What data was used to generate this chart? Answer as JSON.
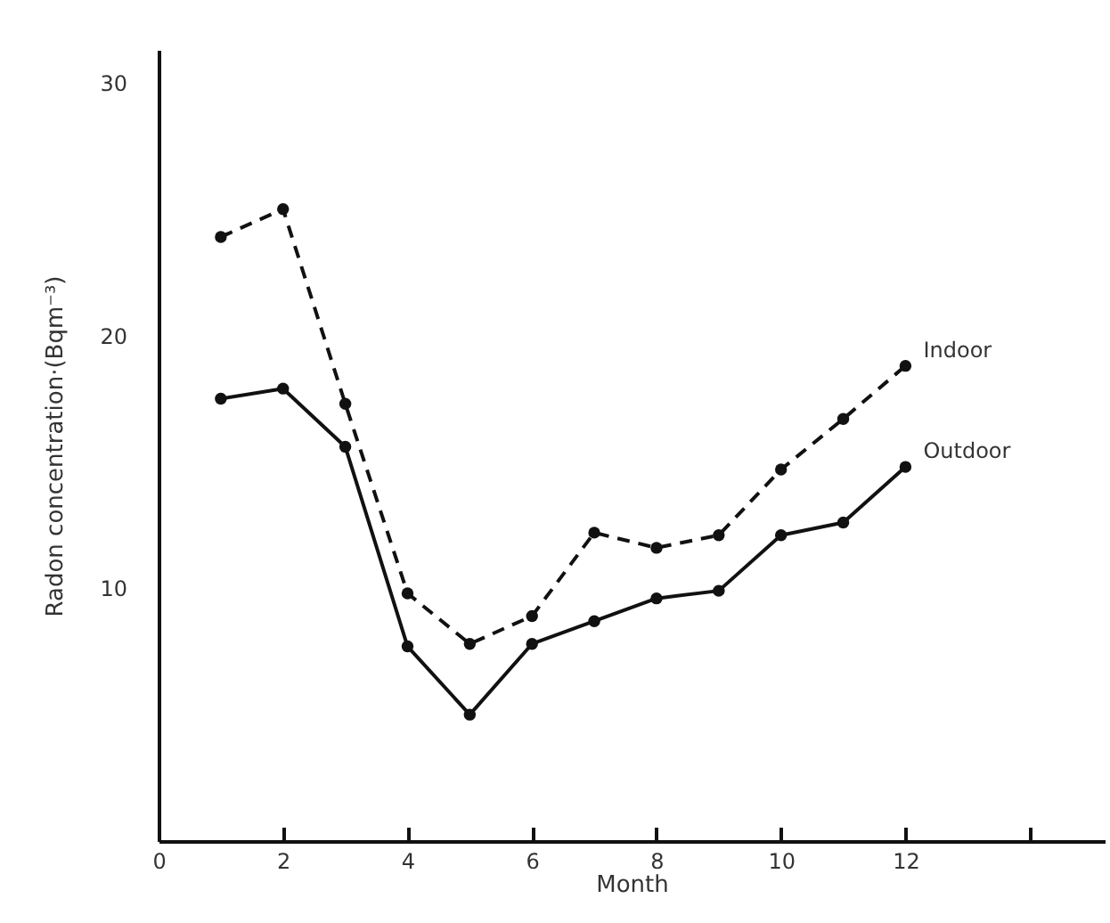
{
  "chart_data": {
    "type": "line",
    "xlabel": "Month",
    "ylabel": "Radon concentration·(Bqm⁻³)",
    "x": [
      1,
      2,
      3,
      4,
      5,
      6,
      7,
      8,
      9,
      10,
      11,
      12
    ],
    "series": [
      {
        "name": "Indoor",
        "color": "#111111",
        "line_style": "dashed",
        "values": [
          23.9,
          25.0,
          17.3,
          9.8,
          7.8,
          8.9,
          12.2,
          11.6,
          12.1,
          14.7,
          16.7,
          18.8
        ]
      },
      {
        "name": "Outdoor",
        "color": "#111111",
        "line_style": "solid",
        "values": [
          17.5,
          17.9,
          15.6,
          7.7,
          5.0,
          7.8,
          8.7,
          9.6,
          9.9,
          12.1,
          12.6,
          14.8
        ]
      }
    ],
    "xlim": [
      0,
      15.2
    ],
    "ylim": [
      0,
      31.3
    ],
    "xticks": [
      {
        "value": 0,
        "label": "0"
      },
      2,
      4,
      6,
      8,
      10,
      12,
      {
        "value": 14,
        "label": null
      }
    ],
    "yticks": [
      10,
      20,
      30
    ],
    "marker": "circle",
    "grid": false
  }
}
